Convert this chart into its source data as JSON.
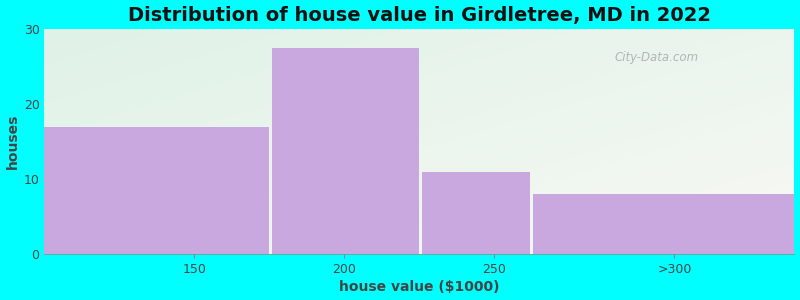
{
  "title": "Distribution of house value in Girdletree, MD in 2022",
  "xlabel": "house value ($1000)",
  "ylabel": "houses",
  "categories": [
    "150",
    "200",
    "250",
    ">300"
  ],
  "values": [
    17,
    27.5,
    11,
    8
  ],
  "bar_color": "#c9a8e0",
  "bar_edgecolor": "none",
  "ylim": [
    0,
    30
  ],
  "yticks": [
    0,
    10,
    20,
    30
  ],
  "background_color": "#00FFFF",
  "plot_bg_left_top": "#dff2e8",
  "plot_bg_right_bottom": "#f5f5f0",
  "title_fontsize": 14,
  "axis_label_fontsize": 10,
  "tick_fontsize": 9,
  "watermark_text": "City-Data.com",
  "bar_gap": 0.01,
  "xlim": [
    100,
    350
  ]
}
